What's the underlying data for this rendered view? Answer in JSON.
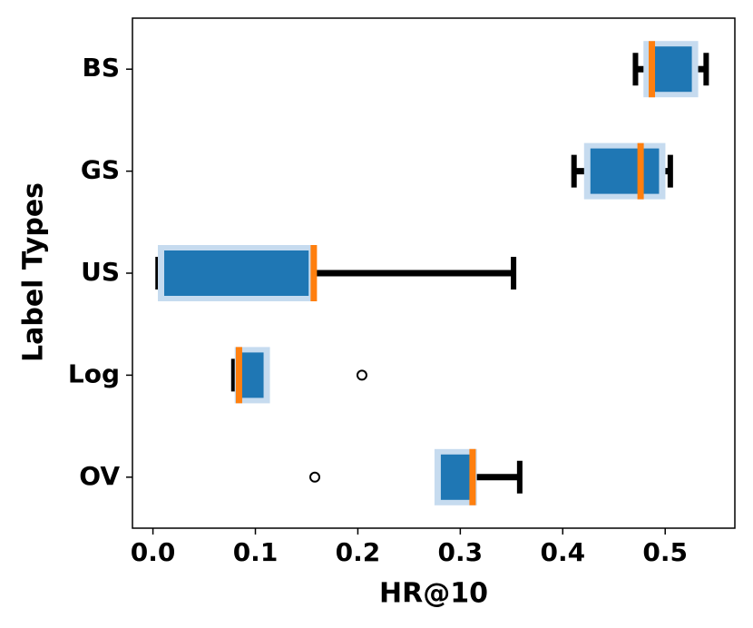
{
  "chart_data": {
    "type": "boxplot",
    "orientation": "horizontal",
    "x_label": "HR@10",
    "y_label": "Label Types",
    "categories": [
      "BS",
      "GS",
      "US",
      "Log",
      "OV"
    ],
    "whislo": [
      0.471,
      0.411,
      0.005,
      0.079,
      0.281
    ],
    "q1": [
      0.485,
      0.427,
      0.011,
      0.086,
      0.281
    ],
    "median": [
      0.487,
      0.476,
      0.157,
      0.084,
      0.312
    ],
    "q3": [
      0.526,
      0.494,
      0.152,
      0.108,
      0.31
    ],
    "whishi": [
      0.54,
      0.505,
      0.352,
      0.108,
      0.358
    ],
    "fliers": [
      [],
      [],
      [],
      [
        0.204
      ],
      [
        0.158
      ]
    ],
    "box_color": "#1f77b4",
    "halo_color": "#c6dbef",
    "median_color": "#ff7f0e",
    "xlim": [
      -0.02,
      0.568
    ],
    "xticks": [
      {
        "value": 0,
        "label": "0.0"
      },
      0.1,
      0.2,
      0.3,
      0.4,
      0.5
    ]
  }
}
